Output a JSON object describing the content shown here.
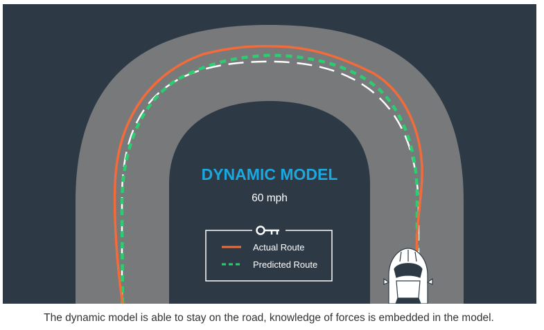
{
  "diagram": {
    "title": "DYNAMIC MODEL",
    "speed": "60 mph",
    "legend": {
      "key_icon": "key-icon",
      "items": [
        {
          "label": "Actual Route",
          "style": "solid",
          "color": "#F26B3A"
        },
        {
          "label": "Predicted Route",
          "style": "dashed",
          "color": "#2ECC71"
        }
      ]
    },
    "colors": {
      "background": "#2D3A46",
      "road": "#78797B",
      "actual_route": "#F26B3A",
      "predicted_route": "#2ECC71",
      "center_line": "#FFFFFF",
      "title": "#1BA8E0"
    },
    "icons": {
      "vehicle": "car-icon"
    }
  },
  "caption": "The dynamic model is able to stay on the road, knowledge of forces is embedded in the model."
}
